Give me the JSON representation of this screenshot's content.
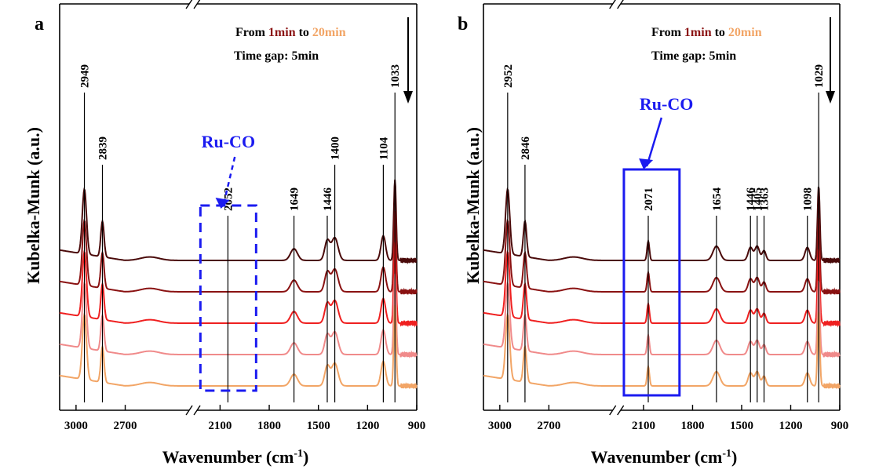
{
  "figure": {
    "ylabel": "Kubelka-Munk (a.u.)",
    "xlabel_main": "Wavenumber (cm",
    "xlabel_sup": "-1",
    "xlabel_close": ")"
  },
  "colors": {
    "line1": "#4a0a0a",
    "line2": "#8a1212",
    "line3": "#ef2020",
    "line4": "#f08a8a",
    "line5": "#f2a566",
    "blue": "#1b1bf0",
    "highlight_dark": "#8b1414",
    "highlight_light": "#f2a566"
  },
  "chart_data": [
    {
      "type": "line",
      "panel": "a",
      "xlabel": "Wavenumber (cm-1)",
      "ylabel": "Kubelka-Munk (a.u.)",
      "x_reversed": true,
      "axis_break": [
        2300,
        2250
      ],
      "xticks": [
        3000,
        2700,
        2100,
        1800,
        1500,
        1200,
        900
      ],
      "tick_labels": [
        "3000",
        "2700",
        "2100",
        "1800",
        "1500",
        "1200",
        "900"
      ],
      "legend": {
        "prefix": "From ",
        "start": "1min",
        "mid": " to ",
        "end": "20min",
        "gap": "Time gap: 5min"
      },
      "series": [
        {
          "color": "#4a0a0a",
          "offset": 4
        },
        {
          "color": "#8a1212",
          "offset": 3
        },
        {
          "color": "#ef2020",
          "offset": 2
        },
        {
          "color": "#f08a8a",
          "offset": 1
        },
        {
          "color": "#f2a566",
          "offset": 0
        }
      ],
      "peaks": [
        {
          "wn": 2949,
          "label": "2949",
          "strength": 1.0,
          "width": 18
        },
        {
          "wn": 2839,
          "label": "2839",
          "strength": 0.55,
          "width": 14
        },
        {
          "wn": 2052,
          "label": "2052",
          "strength": 0.0,
          "width": 10
        },
        {
          "wn": 1649,
          "label": "1649",
          "strength": 0.18,
          "width": 30
        },
        {
          "wn": 1446,
          "label": "1446",
          "strength": 0.3,
          "width": 22
        },
        {
          "wn": 1400,
          "label": "1400",
          "strength": 0.35,
          "width": 28
        },
        {
          "wn": 1104,
          "label": "1104",
          "strength": 0.38,
          "width": 20
        },
        {
          "wn": 1033,
          "label": "1033",
          "strength": 1.25,
          "width": 10
        }
      ],
      "annotation": {
        "text": "Ru-CO",
        "style": "dashed-box"
      }
    },
    {
      "type": "line",
      "panel": "b",
      "xlabel": "Wavenumber (cm-1)",
      "ylabel": "Kubelka-Munk (a.u.)",
      "x_reversed": true,
      "axis_break": [
        2300,
        2250
      ],
      "xticks": [
        3000,
        2700,
        2100,
        1800,
        1500,
        1200,
        900
      ],
      "tick_labels": [
        "3000",
        "2700",
        "2100",
        "1800",
        "1500",
        "1200",
        "900"
      ],
      "legend": {
        "prefix": "From ",
        "start": "1min",
        "mid": " to ",
        "end": "20min",
        "gap": "Time gap: 5min"
      },
      "series": [
        {
          "color": "#4a0a0a",
          "offset": 4
        },
        {
          "color": "#8a1212",
          "offset": 3
        },
        {
          "color": "#ef2020",
          "offset": 2
        },
        {
          "color": "#f08a8a",
          "offset": 1
        },
        {
          "color": "#f2a566",
          "offset": 0
        }
      ],
      "peaks": [
        {
          "wn": 2952,
          "label": "2952",
          "strength": 1.0,
          "width": 18
        },
        {
          "wn": 2846,
          "label": "2846",
          "strength": 0.55,
          "width": 14
        },
        {
          "wn": 2071,
          "label": "2071",
          "strength": 0.3,
          "width": 10
        },
        {
          "wn": 1654,
          "label": "1654",
          "strength": 0.22,
          "width": 30
        },
        {
          "wn": 1446,
          "label": "1446",
          "strength": 0.2,
          "width": 20
        },
        {
          "wn": 1405,
          "label": "1405",
          "strength": 0.22,
          "width": 20
        },
        {
          "wn": 1363,
          "label": "1363",
          "strength": 0.15,
          "width": 16
        },
        {
          "wn": 1098,
          "label": "1098",
          "strength": 0.2,
          "width": 20
        },
        {
          "wn": 1029,
          "label": "1029",
          "strength": 1.15,
          "width": 10
        }
      ],
      "annotation": {
        "text": "Ru-CO",
        "style": "solid-box"
      }
    }
  ]
}
